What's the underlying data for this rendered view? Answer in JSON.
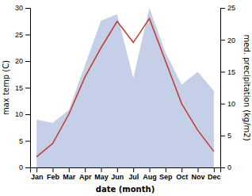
{
  "chart_data": {
    "type": "line",
    "xlabel": "date (month)",
    "ylabel": "max temp (C)",
    "y2label": "med. precipitation (kg/m2)",
    "categories": [
      "Jan",
      "Feb",
      "Mar",
      "Apr",
      "May",
      "Jun",
      "Jul",
      "Aug",
      "Sep",
      "Oct",
      "Nov",
      "Dec"
    ],
    "series": [
      {
        "type": "area",
        "axis": "y2",
        "color": "#c5cfe8",
        "values": [
          7.5,
          7.0,
          9.0,
          16.0,
          23.0,
          24.0,
          14.0,
          25.0,
          18.0,
          13.0,
          15.0,
          12.0
        ]
      },
      {
        "type": "line",
        "color": "#c0392b",
        "values": [
          2.0,
          4.5,
          10.0,
          17.0,
          22.5,
          27.5,
          23.5,
          28.0,
          20.0,
          12.0,
          7.0,
          3.0
        ]
      }
    ],
    "ylim": [
      0,
      30
    ],
    "yticks": [
      0,
      5,
      10,
      15,
      20,
      25,
      30
    ],
    "y2lim": [
      0,
      25
    ],
    "y2ticks": [
      0,
      5,
      10,
      15,
      20,
      25
    ]
  }
}
